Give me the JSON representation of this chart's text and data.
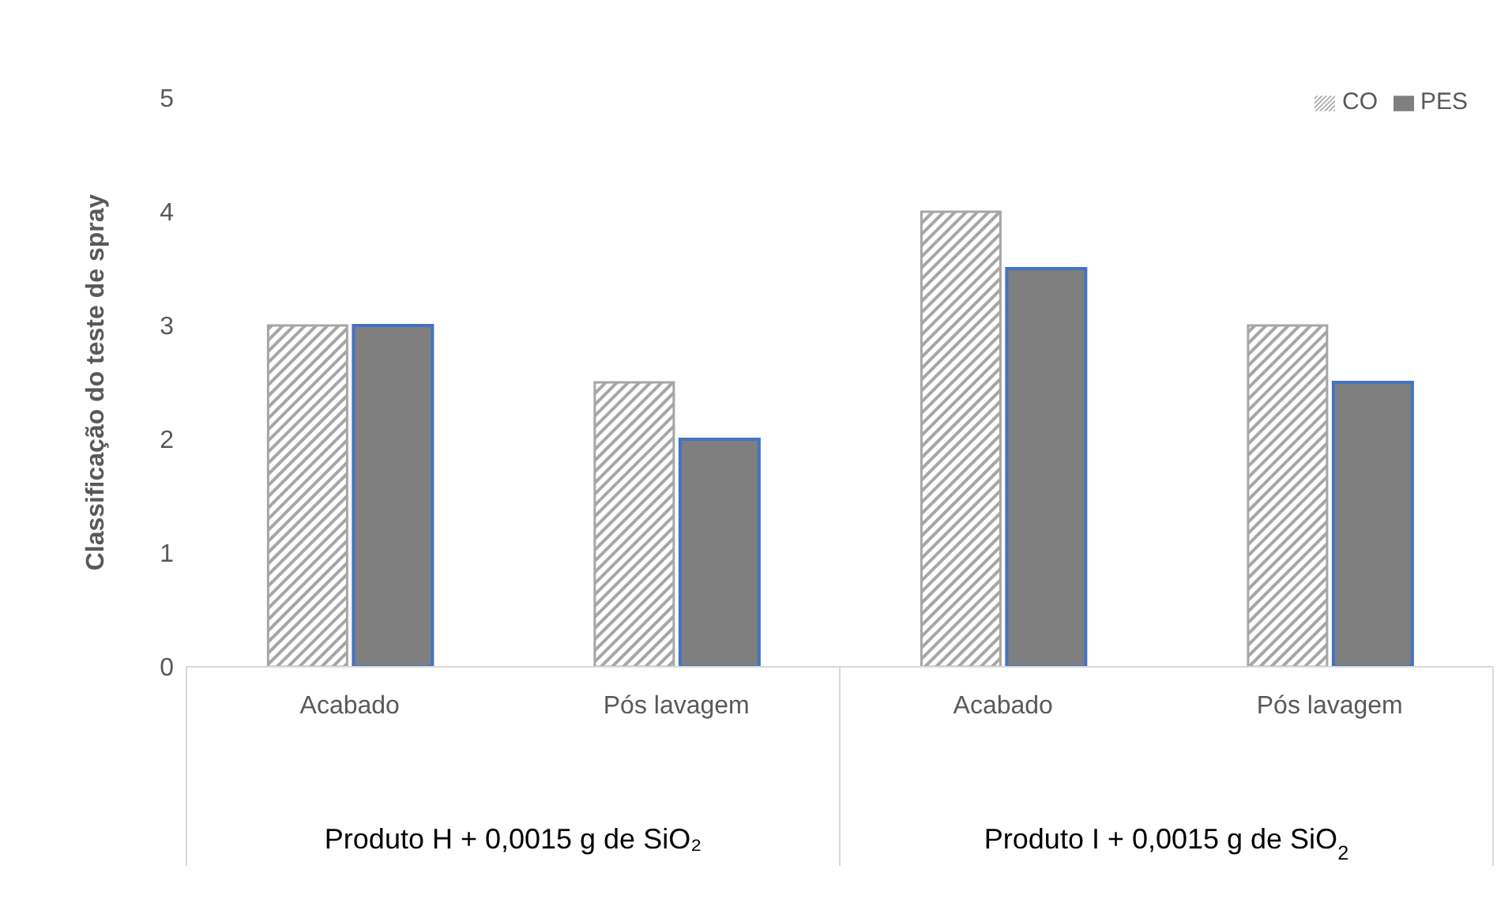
{
  "chart_data": {
    "type": "bar",
    "ylabel": "Classificação do teste de spray",
    "categories": [
      "Acabado",
      "Pós lavagem",
      "Acabado",
      "Pós lavagem"
    ],
    "series": [
      {
        "name": "CO",
        "color": "#a6a6a6",
        "values": [
          3,
          2.5,
          4,
          3
        ]
      },
      {
        "name": "PES",
        "color": "#7f7f7f",
        "values": [
          3,
          2,
          3.5,
          2.5
        ]
      }
    ],
    "annotations": [
      "Produto H + 0,0015 g de SiO₂",
      "Produto I + 0,0015 g de SiO$_{2}$"
    ],
    "ylim": [
      0,
      5
    ],
    "yticks": [
      0,
      1,
      2,
      3,
      4,
      5
    ],
    "legend": "top right"
  }
}
